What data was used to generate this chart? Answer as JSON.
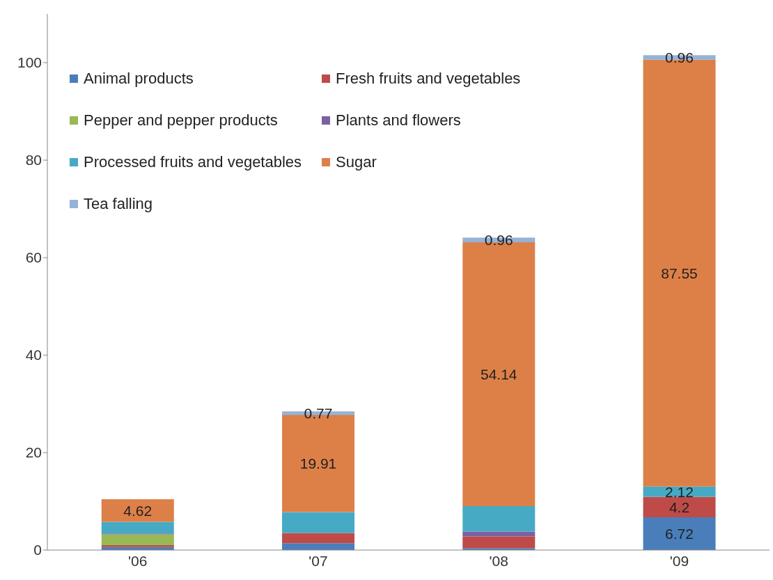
{
  "chart_data": {
    "type": "bar",
    "stacked": true,
    "categories": [
      "'06",
      "'07",
      "'08",
      "'09"
    ],
    "series": [
      {
        "name": "Animal products",
        "color": "#4a7ebb",
        "values": [
          0.6,
          1.4,
          0.4,
          6.72
        ],
        "value_labels": [
          null,
          null,
          null,
          "6.72"
        ]
      },
      {
        "name": "Fresh fruits and vegetables",
        "color": "#be4b48",
        "values": [
          0.4,
          2.1,
          2.4,
          4.2
        ],
        "value_labels": [
          null,
          null,
          null,
          "4.2"
        ]
      },
      {
        "name": "Pepper and pepper products",
        "color": "#98b954",
        "values": [
          2.2,
          0,
          0,
          0
        ]
      },
      {
        "name": "Plants and flowers",
        "color": "#7d60a0",
        "values": [
          0.2,
          0,
          1.0,
          0
        ]
      },
      {
        "name": "Processed fruits and vegetables",
        "color": "#46aac5",
        "values": [
          2.4,
          4.3,
          5.2,
          2.12
        ],
        "value_labels": [
          null,
          null,
          null,
          "2.12"
        ]
      },
      {
        "name": "Sugar",
        "color": "#dd8048",
        "values": [
          4.62,
          19.91,
          54.14,
          87.55
        ],
        "value_labels": [
          "4.62",
          "19.91",
          "54.14",
          "87.55"
        ]
      },
      {
        "name": "Tea falling",
        "color": "#95b3d7",
        "values": [
          0,
          0.77,
          0.96,
          0.96
        ],
        "value_labels": [
          null,
          "0.77",
          "0.96",
          "0.96"
        ]
      }
    ],
    "ylim": [
      0,
      110
    ],
    "yticks": [
      0,
      20,
      40,
      60,
      80,
      100
    ],
    "legend": "top left"
  }
}
